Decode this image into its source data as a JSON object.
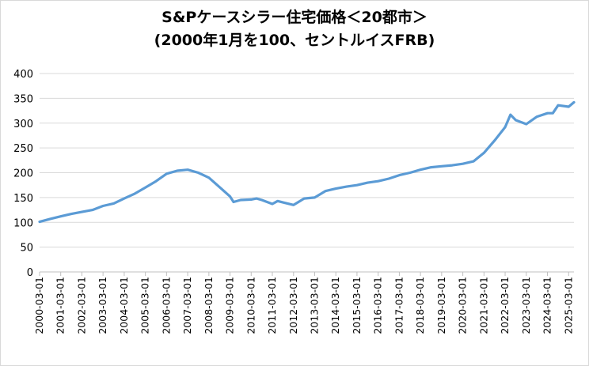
{
  "chart_data": {
    "type": "line",
    "title_line1": "S&Pケースシラー住宅価格＜20都市＞",
    "title_line2": "(2000年1月を100、セントルイスFRB)",
    "xlabel": "",
    "ylabel": "",
    "ylim": [
      0,
      400
    ],
    "yticks": [
      "0",
      "50",
      "100",
      "150",
      "200",
      "250",
      "300",
      "350",
      "400"
    ],
    "x_tick_labels": [
      "2000-03-01",
      "2001-03-01",
      "2002-03-01",
      "2003-03-01",
      "2004-03-01",
      "2005-03-01",
      "2006-03-01",
      "2007-03-01",
      "2008-03-01",
      "2009-03-01",
      "2010-03-01",
      "2011-03-01",
      "2012-03-01",
      "2013-03-01",
      "2014-03-01",
      "2015-03-01",
      "2016-03-01",
      "2017-03-01",
      "2018-03-01",
      "2019-03-01",
      "2020-03-01",
      "2021-03-01",
      "2022-03-01",
      "2023-03-01",
      "2024-03-01",
      "2025-03-01"
    ],
    "grid": "horizontal",
    "legend": "none",
    "line_color": "#5b9bd5",
    "series": [
      {
        "x": [
          "2000-03-01",
          "2000-09-01",
          "2001-03-01",
          "2001-09-01",
          "2002-03-01",
          "2002-09-01",
          "2003-03-01",
          "2003-09-01",
          "2004-03-01",
          "2004-09-01",
          "2005-03-01",
          "2005-09-01",
          "2006-03-01",
          "2006-09-01",
          "2007-03-01",
          "2007-09-01",
          "2008-03-01",
          "2008-09-01",
          "2009-03-01",
          "2009-05-01",
          "2009-09-01",
          "2010-03-01",
          "2010-06-01",
          "2010-09-01",
          "2011-03-01",
          "2011-06-01",
          "2011-09-01",
          "2012-03-01",
          "2012-09-01",
          "2013-03-01",
          "2013-09-01",
          "2014-03-01",
          "2014-09-01",
          "2015-03-01",
          "2015-09-01",
          "2016-03-01",
          "2016-09-01",
          "2017-03-01",
          "2017-09-01",
          "2018-03-01",
          "2018-09-01",
          "2019-03-01",
          "2019-09-01",
          "2020-03-01",
          "2020-09-01",
          "2021-03-01",
          "2021-09-01",
          "2022-03-01",
          "2022-06-01",
          "2022-09-01",
          "2023-03-01",
          "2023-09-01",
          "2024-03-01",
          "2024-06-01",
          "2024-09-01",
          "2025-03-01",
          "2025-06-01"
        ],
        "values": [
          101,
          107,
          112,
          117,
          121,
          125,
          133,
          138,
          148,
          158,
          170,
          183,
          198,
          204,
          206,
          200,
          190,
          171,
          152,
          141,
          145,
          146,
          148,
          145,
          137,
          143,
          140,
          135,
          148,
          150,
          163,
          168,
          172,
          175,
          180,
          183,
          188,
          195,
          200,
          206,
          211,
          213,
          215,
          218,
          223,
          240,
          265,
          292,
          317,
          306,
          298,
          313,
          320,
          320,
          336,
          333,
          342
        ]
      }
    ]
  }
}
